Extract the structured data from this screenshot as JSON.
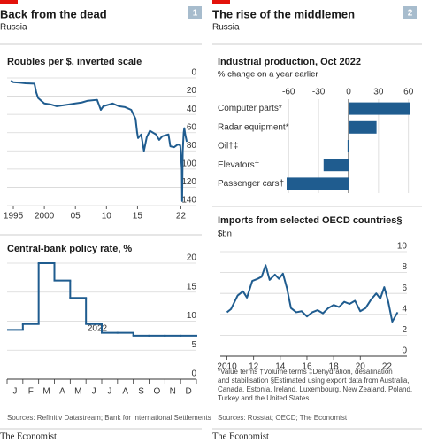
{
  "panels": [
    {
      "title": "Back from the dead",
      "subtitle": "Russia",
      "badge": "1",
      "source": "Sources: Refinitiv Datastream; Bank for International Settlements",
      "brand": "The Economist"
    },
    {
      "title": "The rise of the middlemen",
      "subtitle": "Russia",
      "badge": "2",
      "source": "Sources: Rosstat; OECD; The Economist",
      "brand": "The Economist"
    }
  ],
  "footnote": [
    "*Value terms   †Volume terms   ‡Dehydration, desalination",
    "and stabilisation   §Estimated using export data from Australia,",
    "Canada, Estonia, Ireland, Luxembourg, New Zealand, Poland,",
    "Turkey and the United States"
  ],
  "chart_data": [
    {
      "type": "line",
      "title": "Roubles per $, inverted scale",
      "y_inverted": true,
      "color": "#1f5c8f",
      "x": [
        1994.6,
        1995,
        1996,
        1997,
        1998.4,
        1998.7,
        1999,
        1999.5,
        2000,
        2001,
        2002,
        2003,
        2004,
        2005,
        2006,
        2007,
        2008.5,
        2009.1,
        2009.5,
        2010,
        2011,
        2012,
        2013,
        2014,
        2014.7,
        2014.95,
        2015.1,
        2015.6,
        2016.05,
        2016.5,
        2017,
        2018,
        2018.5,
        2019,
        2020,
        2020.3,
        2020.9,
        2021.5,
        2021.9,
        2022.15,
        2022.2,
        2022.3,
        2022.45,
        2022.55,
        2022.7,
        2022.95
      ],
      "values": [
        3,
        4.6,
        5.1,
        5.8,
        6.2,
        16,
        22,
        25,
        28,
        29,
        31,
        30,
        29,
        28,
        27,
        25,
        24,
        35,
        31,
        30,
        28,
        31,
        32,
        35,
        45,
        60,
        66,
        62,
        80,
        65,
        58,
        62,
        68,
        64,
        62,
        75,
        76,
        73,
        74,
        100,
        135,
        80,
        60,
        55,
        62,
        70
      ],
      "xlim": [
        1994,
        2024.5
      ],
      "xticks": [
        1995,
        2000,
        {
          "value": 2005,
          "label": "05"
        },
        {
          "value": 2010,
          "label": "10"
        },
        {
          "value": 2015,
          "label": "15"
        },
        {
          "value": 2022,
          "label": "22"
        }
      ],
      "ylim": [
        0,
        140
      ],
      "yticks": [
        0,
        20,
        40,
        60,
        80,
        100,
        120,
        140
      ],
      "grid": true
    },
    {
      "type": "step",
      "title": "Central-bank policy rate, %",
      "x_label": "2022",
      "color": "#1f5c8f",
      "categories": [
        "J",
        "F",
        "M",
        "A",
        "M",
        "J",
        "J",
        "A",
        "S",
        "O",
        "N",
        "D"
      ],
      "values": [
        8.5,
        9.5,
        20,
        17,
        14,
        9.5,
        8,
        8,
        7.5,
        7.5,
        7.5,
        7.5
      ],
      "ylim": [
        0,
        20
      ],
      "yticks": [
        0,
        5,
        10,
        15,
        20
      ],
      "grid": true
    },
    {
      "type": "barh",
      "title": "Industrial production, Oct 2022",
      "subtitle": "% change on a year earlier",
      "color": "#1f5c8f",
      "categories": [
        "Computer parts*",
        "Radar equipment*",
        "Oil†‡",
        "Elevators†",
        "Passenger cars†"
      ],
      "values": [
        62,
        28,
        -1,
        -25,
        -62
      ],
      "xlim": [
        -62,
        62
      ],
      "xticks": [
        -60,
        -30,
        0,
        30,
        60
      ],
      "grid": true
    },
    {
      "type": "line",
      "title": "Imports from selected OECD countries§",
      "subtitle": "$bn",
      "color": "#1f5c8f",
      "x": [
        2010,
        2010.3,
        2010.8,
        2011.2,
        2011.5,
        2011.9,
        2012.3,
        2012.6,
        2012.9,
        2013.2,
        2013.6,
        2013.9,
        2014.2,
        2014.5,
        2014.8,
        2015.2,
        2015.6,
        2016,
        2016.4,
        2016.8,
        2017.2,
        2017.6,
        2018,
        2018.4,
        2018.8,
        2019.2,
        2019.6,
        2020,
        2020.4,
        2020.8,
        2021.2,
        2021.5,
        2021.8,
        2022.1,
        2022.4,
        2022.8
      ],
      "values": [
        4.2,
        4.5,
        5.8,
        6.2,
        5.6,
        7.2,
        7.4,
        7.6,
        8.7,
        7.3,
        7.8,
        7.4,
        7.9,
        6.5,
        4.6,
        4.2,
        4.3,
        3.8,
        4.2,
        4.4,
        4.1,
        4.6,
        4.9,
        4.7,
        5.2,
        5.0,
        5.3,
        4.3,
        4.6,
        5.4,
        6.0,
        5.5,
        6.6,
        5.2,
        3.3,
        4.2
      ],
      "xlim": [
        2009.5,
        2023.5
      ],
      "xticks": [
        2010,
        {
          "value": 2012,
          "label": "12"
        },
        {
          "value": 2014,
          "label": "14"
        },
        {
          "value": 2016,
          "label": "16"
        },
        {
          "value": 2018,
          "label": "18"
        },
        {
          "value": 2020,
          "label": "20"
        },
        {
          "value": 2022,
          "label": "22"
        }
      ],
      "ylim": [
        0,
        10
      ],
      "yticks": [
        0,
        2,
        4,
        6,
        8,
        10
      ],
      "grid": true
    }
  ]
}
